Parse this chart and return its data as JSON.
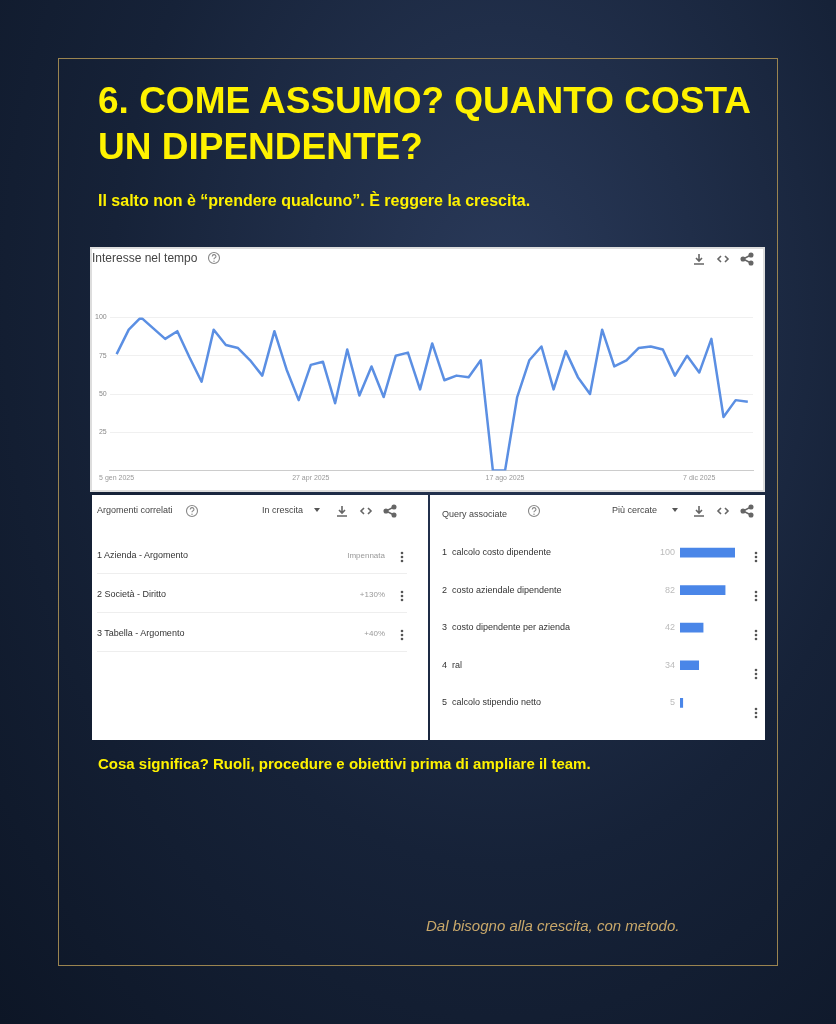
{
  "chart_data": [
    {
      "type": "other",
      "title": "6. COME ASSUMO? QUANTO COSTA UN DIPENDENTE?",
      "subtitle": "Il salto non è “prendere qualcuno”. È reggere la crescita."
    },
    {
      "type": "line",
      "title": "Interesse nel tempo",
      "x": [
        "2025-01-05",
        "2025-01-12",
        "2025-01-19",
        "2025-01-26",
        "2025-02-02",
        "2025-02-09",
        "2025-02-16",
        "2025-02-23",
        "2025-03-02",
        "2025-03-09",
        "2025-03-16",
        "2025-03-23",
        "2025-03-30",
        "2025-04-06",
        "2025-04-13",
        "2025-04-20",
        "2025-04-27",
        "2025-05-04",
        "2025-05-11",
        "2025-05-18",
        "2025-05-25",
        "2025-06-01",
        "2025-06-08",
        "2025-06-15",
        "2025-06-22",
        "2025-06-29",
        "2025-07-06",
        "2025-07-13",
        "2025-07-20",
        "2025-07-27",
        "2025-08-03",
        "2025-08-10",
        "2025-08-17",
        "2025-08-24",
        "2025-08-31",
        "2025-09-07",
        "2025-09-14",
        "2025-09-21",
        "2025-09-28",
        "2025-10-05",
        "2025-10-12",
        "2025-10-19",
        "2025-10-26",
        "2025-11-02",
        "2025-11-09",
        "2025-11-16",
        "2025-11-23",
        "2025-11-30",
        "2025-12-07",
        "2025-12-14",
        "2025-12-21",
        "2025-12-28",
        "2026-01-04"
      ],
      "series": [
        {
          "color": "#5b8fe3",
          "values": [
            76,
            92,
            100,
            93,
            86,
            91,
            74,
            58,
            92,
            82,
            80,
            72,
            62,
            91,
            66,
            46,
            69,
            71,
            44,
            79,
            49,
            68,
            48,
            75,
            77,
            53,
            83,
            59,
            62,
            61,
            72,
            0,
            0,
            48,
            72,
            81,
            53,
            78,
            61,
            50,
            92,
            68,
            72,
            80,
            81,
            79,
            62,
            75,
            64,
            86,
            35,
            46,
            45
          ]
        }
      ],
      "xlim": [
        "2025-01-01",
        "2026-01-07"
      ],
      "xticks": [
        {
          "value": "2025-01-05",
          "label": "5 gen 2025"
        },
        {
          "value": "2025-04-27",
          "label": "27 apr 2025"
        },
        {
          "value": "2025-08-17",
          "label": "17 ago 2025"
        },
        {
          "value": "2025-12-07",
          "label": "7 dic 2025"
        }
      ],
      "ylim": [
        0,
        100
      ],
      "yticks": [
        25,
        50,
        75,
        100
      ],
      "grid": "y",
      "marker": "none",
      "line_style": "solid"
    },
    {
      "type": "other",
      "title": "Argomenti correlati",
      "annotations": [
        "In crescita",
        "1  Azienda - Argomento",
        "Impennata",
        "2  Società - Diritto",
        "+130%",
        "3  Tabella - Argomento",
        "+40%"
      ]
    },
    {
      "type": "bar",
      "orientation": "horizontal",
      "title": "Query associate",
      "annotations": [
        "Più cercate"
      ],
      "categories": [
        "1  calcolo costo dipendente",
        "2  costo aziendale dipendente",
        "3  costo dipendente per azienda",
        "4  ral",
        "5  calcolo stipendio netto"
      ],
      "values": [
        100,
        82,
        42,
        34,
        5
      ],
      "color": "#4a86e8",
      "xlim": [
        0,
        100
      ],
      "tick_labels": "y",
      "data_labels": true
    },
    {
      "type": "other",
      "annotations": [
        "Cosa significa? Ruoli, procedure e obiettivi prima di ampliare il team.",
        "Dal bisogno alla crescita, con metodo."
      ]
    }
  ]
}
